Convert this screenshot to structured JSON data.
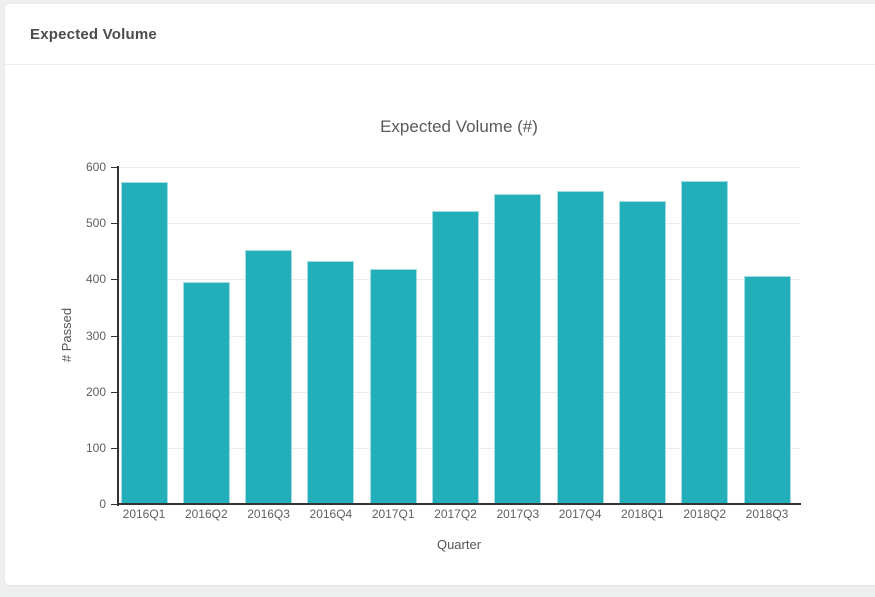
{
  "panel": {
    "title": "Expected Volume"
  },
  "chart_data": {
    "type": "bar",
    "title": "Expected Volume (#)",
    "xlabel": "Quarter",
    "ylabel": "# Passed",
    "categories": [
      "2016Q1",
      "2016Q2",
      "2016Q3",
      "2016Q4",
      "2017Q1",
      "2017Q2",
      "2017Q3",
      "2017Q4",
      "2018Q1",
      "2018Q2",
      "2018Q3"
    ],
    "values": [
      574,
      395,
      452,
      433,
      418,
      521,
      552,
      558,
      539,
      575,
      406
    ],
    "ylim": [
      0,
      600
    ],
    "yticks": [
      0,
      100,
      200,
      300,
      400,
      500,
      600
    ],
    "grid": true,
    "legend": "none",
    "colors": {
      "bar_fill": "#22afb9",
      "bar_edge": "#a3dde1",
      "axis": "#333333",
      "grid_line": "#ececec",
      "tick_text": "#606060",
      "title_text": "#5a5a5a"
    }
  }
}
